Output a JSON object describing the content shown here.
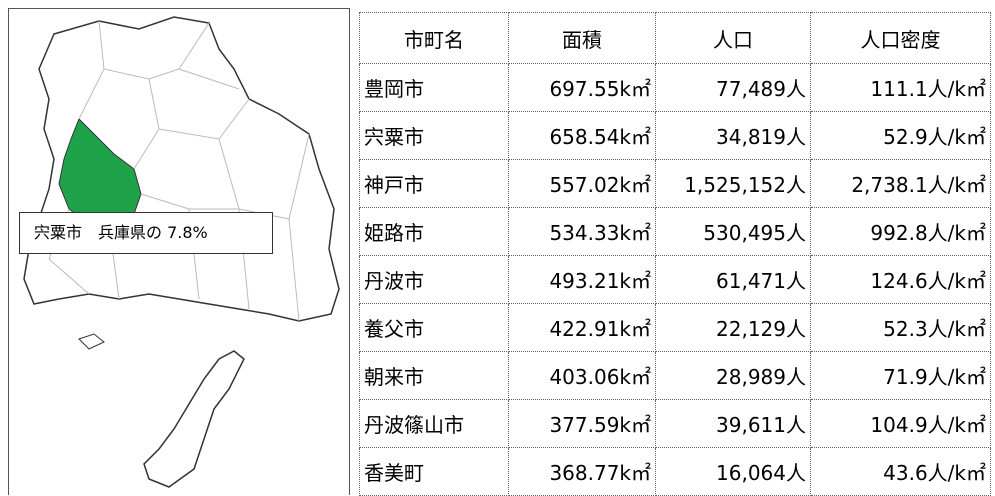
{
  "map": {
    "label": "宍粟市　兵庫県の 7.8%"
  },
  "table": {
    "header": [
      "市町名",
      "面積",
      "人口",
      "人口密度"
    ],
    "rows": [
      [
        "豊岡市",
        "697.55k㎡",
        "77,489人",
        "111.1人/k㎡"
      ],
      [
        "宍粟市",
        "658.54k㎡",
        "34,819人",
        "52.9人/k㎡"
      ],
      [
        "神戸市",
        "557.02k㎡",
        "1,525,152人",
        "2,738.1人/k㎡"
      ],
      [
        "姫路市",
        "534.33k㎡",
        "530,495人",
        "992.8人/k㎡"
      ],
      [
        "丹波市",
        "493.21k㎡",
        "61,471人",
        "124.6人/k㎡"
      ],
      [
        "養父市",
        "422.91k㎡",
        "22,129人",
        "52.3人/k㎡"
      ],
      [
        "朝来市",
        "403.06k㎡",
        "28,989人",
        "71.9人/k㎡"
      ],
      [
        "丹波篠山市",
        "377.59k㎡",
        "39,611人",
        "104.9人/k㎡"
      ],
      [
        "香美町",
        "368.77k㎡",
        "16,064人",
        "43.6人/k㎡"
      ]
    ]
  }
}
